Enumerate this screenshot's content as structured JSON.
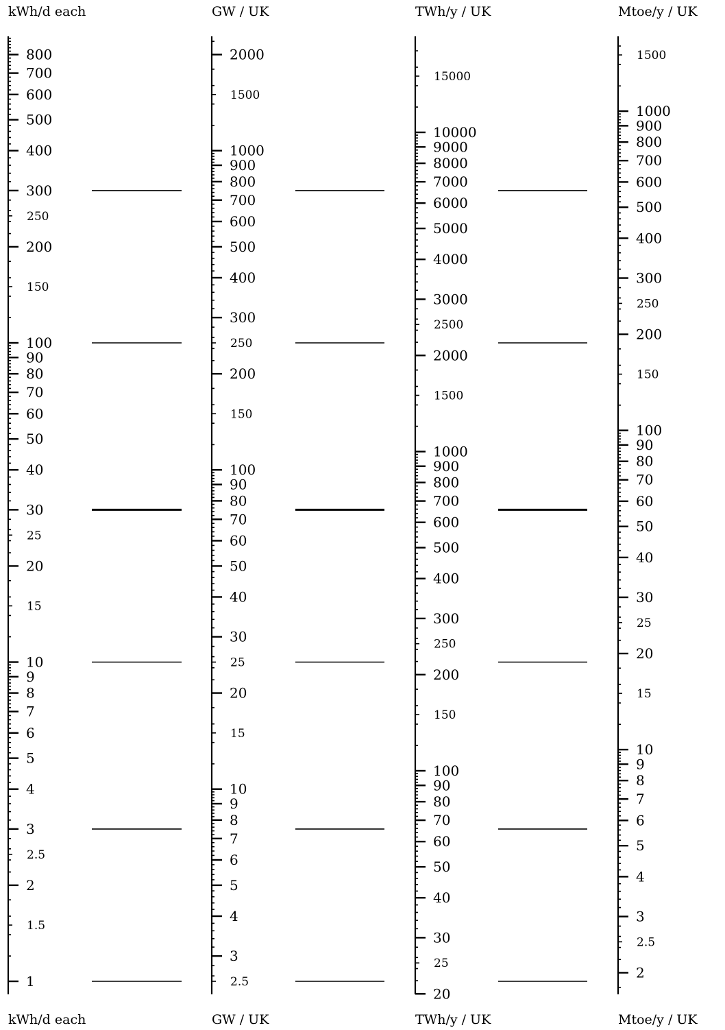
{
  "chart_data": {
    "type": "nomogram",
    "scales": [
      {
        "name": "kWh/d each",
        "major_ticks": [
          "1",
          "2",
          "3",
          "4",
          "5",
          "6",
          "7",
          "8",
          "9",
          "10",
          "20",
          "30",
          "40",
          "50",
          "60",
          "70",
          "80",
          "90",
          "100",
          "200",
          "300",
          "400",
          "500",
          "600",
          "700",
          "800"
        ],
        "mid_ticks": [
          "1.5",
          "2.5",
          "15",
          "25",
          "150",
          "250"
        ],
        "range": [
          1,
          900
        ]
      },
      {
        "name": "GW / UK",
        "major_ticks": [
          "3",
          "4",
          "5",
          "6",
          "7",
          "8",
          "9",
          "10",
          "20",
          "30",
          "40",
          "50",
          "60",
          "70",
          "80",
          "90",
          "100",
          "200",
          "300",
          "400",
          "500",
          "600",
          "700",
          "800",
          "900",
          "1000",
          "2000"
        ],
        "mid_ticks": [
          "2.5",
          "15",
          "25",
          "150",
          "250",
          "1500"
        ],
        "range": [
          2.45,
          2200
        ]
      },
      {
        "name": "TWh/y / UK",
        "major_ticks": [
          "20",
          "30",
          "40",
          "50",
          "60",
          "70",
          "80",
          "90",
          "100",
          "200",
          "300",
          "400",
          "500",
          "600",
          "700",
          "800",
          "900",
          "1000",
          "2000",
          "3000",
          "4000",
          "5000",
          "6000",
          "7000",
          "8000",
          "9000",
          "10000"
        ],
        "mid_ticks": [
          "25",
          "150",
          "250",
          "1500",
          "2500",
          "15000"
        ],
        "range": [
          20,
          19500
        ]
      },
      {
        "name": "Mtoe/y / UK",
        "major_ticks": [
          "2",
          "3",
          "4",
          "5",
          "6",
          "7",
          "8",
          "9",
          "10",
          "20",
          "30",
          "40",
          "50",
          "60",
          "70",
          "80",
          "90",
          "100",
          "200",
          "300",
          "400",
          "500",
          "600",
          "700",
          "800",
          "900",
          "1000"
        ],
        "mid_ticks": [
          "2.5",
          "15",
          "25",
          "150",
          "250",
          "1500"
        ],
        "range": [
          1.7,
          1650
        ]
      }
    ],
    "reference_values_kwh_per_day": [
      1,
      3,
      10,
      30,
      100,
      300
    ],
    "emphasized_reference": 30
  }
}
